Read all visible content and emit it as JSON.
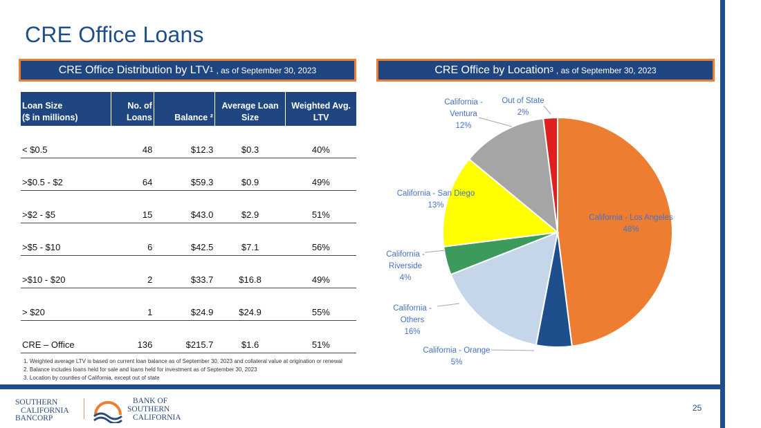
{
  "title": "CRE Office Loans",
  "left_header": {
    "main": "CRE Office Distribution by LTV",
    "sup": "1",
    "sub": ", as of September 30, 2023"
  },
  "right_header": {
    "main": "CRE Office by Location ",
    "sup": "3",
    "sub": ", as of September 30, 2023"
  },
  "table": {
    "headers": [
      {
        "line1": "Loan Size",
        "line2": "($ in millions)"
      },
      {
        "line1": "No. of",
        "line2": "Loans"
      },
      {
        "line1": "",
        "line2": "Balance ²"
      },
      {
        "line1": "Average Loan",
        "line2": "Size"
      },
      {
        "line1": "Weighted Avg.",
        "line2": "LTV"
      }
    ],
    "rows": [
      [
        "< $0.5",
        "48",
        "$12.3",
        "$0.3",
        "40%"
      ],
      [
        ">$0.5 - $2",
        "64",
        "$59.3",
        "$0.9",
        "49%"
      ],
      [
        ">$2 - $5",
        "15",
        "$43.0",
        "$2.9",
        "51%"
      ],
      [
        ">$5 - $10",
        "6",
        "$42.5",
        "$7.1",
        "56%"
      ],
      [
        ">$10 - $20",
        "2",
        "$33.7",
        "$16.8",
        "49%"
      ],
      [
        "> $20",
        "1",
        "$24.9",
        "$24.9",
        "55%"
      ],
      [
        "CRE – Office",
        "136",
        "$215.7",
        "$1.6",
        "51%"
      ]
    ]
  },
  "footnotes": [
    "1.  Weighted average LTV is based on current loan balance as of September 30, 2023 and collateral value at origination or renewal",
    "2.  Balance includes loans held for sale and loans held for investment as of September 30, 2023",
    "3.  Location by counties of California, except out of state"
  ],
  "chart_data": {
    "type": "pie",
    "title": "CRE Office by Location",
    "slices": [
      {
        "label": "California - Los Angeles",
        "lines": [
          "California - Los Angeles",
          "48%"
        ],
        "value": 48,
        "color": "#ed7d31"
      },
      {
        "label": "California - Orange",
        "lines": [
          "California - Orange",
          "5%"
        ],
        "value": 5,
        "color": "#1f4e8c"
      },
      {
        "label": "California - Others",
        "lines": [
          "California -",
          "Others",
          "16%"
        ],
        "value": 16,
        "color": "#c5d6eb"
      },
      {
        "label": "California - Riverside",
        "lines": [
          "California -",
          "Riverside",
          "4%"
        ],
        "value": 4,
        "color": "#3b9a5c"
      },
      {
        "label": "California - San Diego",
        "lines": [
          "California - San Diego",
          "13%"
        ],
        "value": 13,
        "color": "#ffff00"
      },
      {
        "label": "California - Ventura",
        "lines": [
          "California -",
          "Ventura",
          "12%"
        ],
        "value": 12,
        "color": "#a5a5a5"
      },
      {
        "label": "Out of State",
        "lines": [
          "Out of State",
          "2%"
        ],
        "value": 2,
        "color": "#e02020"
      }
    ]
  },
  "page_number": "25",
  "logo_left": {
    "line1": "SOUTHERN",
    "line2": "CALIFORNIA",
    "line3": "BANCORP"
  },
  "logo_right": {
    "line1": "BANK OF",
    "line2": "SOUTHERN",
    "line3": "CALIFORNIA"
  }
}
